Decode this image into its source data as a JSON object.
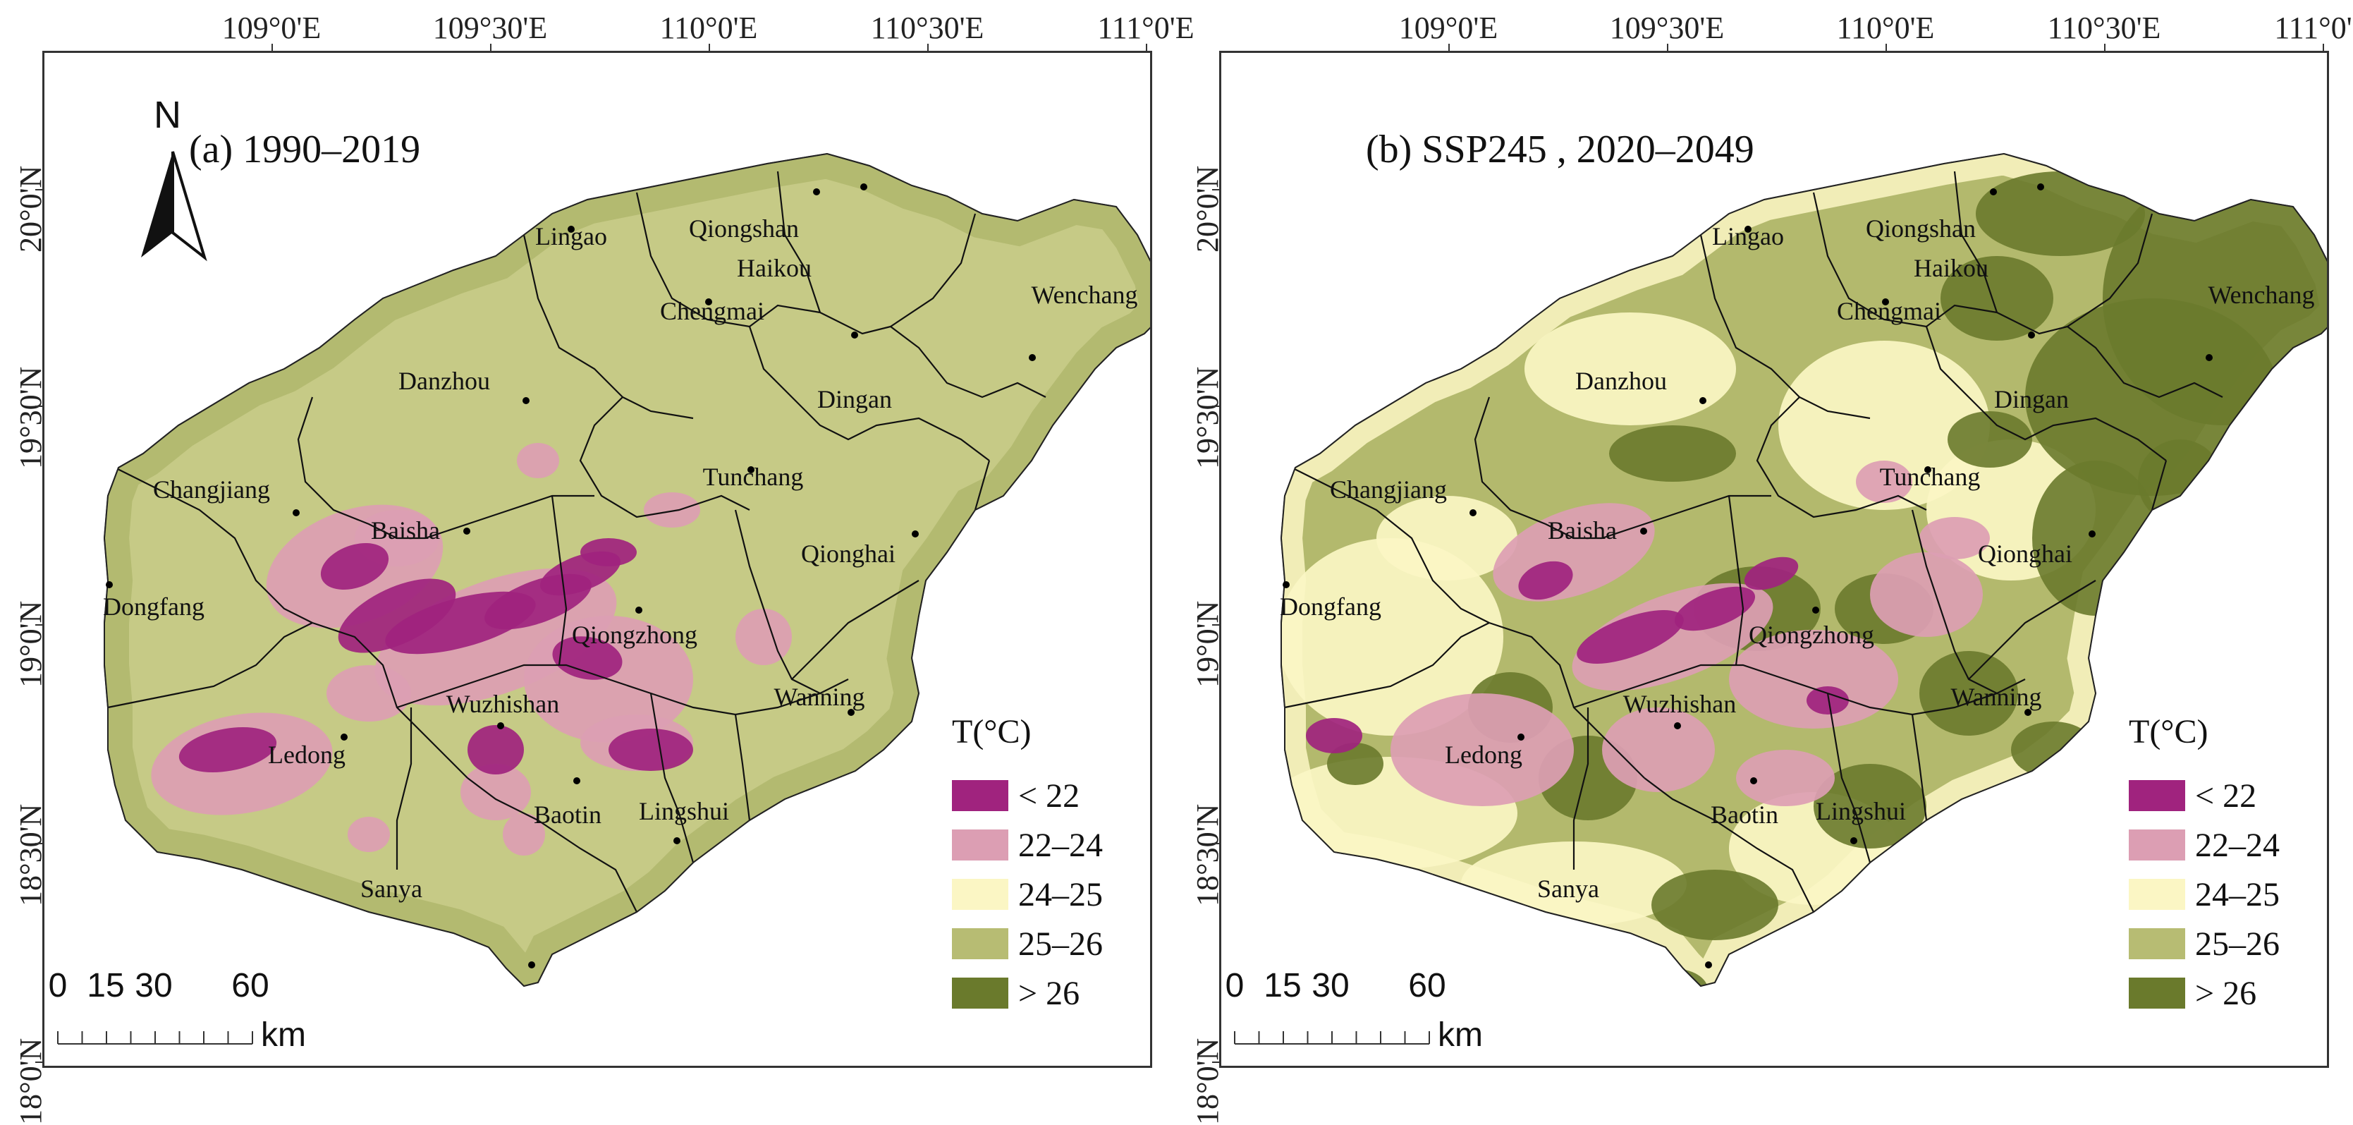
{
  "figure": {
    "panels": [
      {
        "id": "a",
        "title": "(a) 1990–2019",
        "scheme": "historic",
        "north_label": "N",
        "show_north": true
      },
      {
        "id": "b",
        "title": "(b) SSP245 , 2020–2049",
        "scheme": "future",
        "north_label": "",
        "show_north": false
      }
    ],
    "longitude_ticks": [
      "109°0'E",
      "109°30'E",
      "110°0'E",
      "110°30'E",
      "111°0'E"
    ],
    "latitude_ticks": [
      "20°0'N",
      "19°30'N",
      "19°0'N",
      "18°30'N",
      "18°0'N"
    ],
    "cities": [
      {
        "name": "Lingao"
      },
      {
        "name": "Qiongshan"
      },
      {
        "name": "Haikou"
      },
      {
        "name": "Chengmai"
      },
      {
        "name": "Wenchang"
      },
      {
        "name": "Danzhou"
      },
      {
        "name": "Dingan"
      },
      {
        "name": "Changjiang"
      },
      {
        "name": "Tunchang"
      },
      {
        "name": "Baisha"
      },
      {
        "name": "Qionghai"
      },
      {
        "name": "Dongfang"
      },
      {
        "name": "Qiongzhong"
      },
      {
        "name": "Wanning"
      },
      {
        "name": "Wuzhishan"
      },
      {
        "name": "Ledong"
      },
      {
        "name": "Baotin"
      },
      {
        "name": "Lingshui"
      },
      {
        "name": "Sanya"
      }
    ],
    "legend": {
      "title": "T(°C)",
      "items": [
        {
          "label": "< 22",
          "color": "#a0237e"
        },
        {
          "label": "22–24",
          "color": "#dc9eb3"
        },
        {
          "label": "24–25",
          "color": "#fbf6c4"
        },
        {
          "label": "25–26",
          "color": "#b7bc73"
        },
        {
          "label": "> 26",
          "color": "#6a7a2c"
        }
      ]
    },
    "scale_bar": {
      "ticks": [
        "0",
        "15",
        "30",
        "60"
      ],
      "unit": "km"
    },
    "colors": {
      "sea": "#ffffff",
      "land_historic": "#c6ca86",
      "land_future": "#b3b96d",
      "coast_band_historic": "#a4ad5e",
      "boundary": "#111111"
    }
  }
}
